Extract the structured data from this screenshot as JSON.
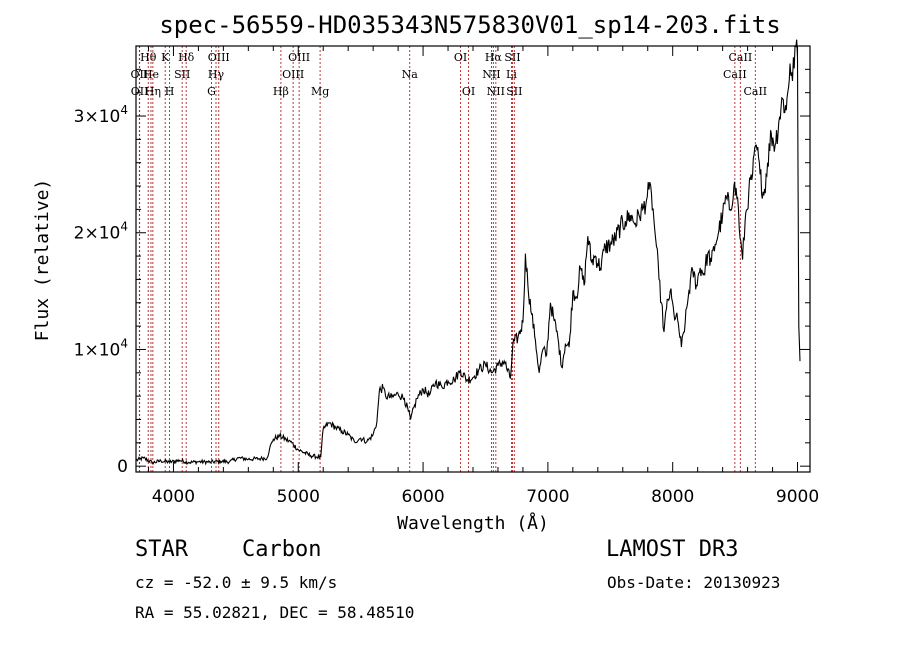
{
  "chart_data": {
    "type": "line",
    "title": "spec-56559-HD035343N575830V01_sp14-203.fits",
    "xlabel": "Wavelength (Å)",
    "ylabel": "Flux (relative)",
    "xlim": [
      3700,
      9100
    ],
    "ylim": [
      -500,
      36000
    ],
    "x_ticks": [
      {
        "value": 4000,
        "label": "4000"
      },
      {
        "value": 5000,
        "label": "5000"
      },
      {
        "value": 6000,
        "label": "6000"
      },
      {
        "value": 7000,
        "label": "7000"
      },
      {
        "value": 8000,
        "label": "8000"
      },
      {
        "value": 9000,
        "label": "9000"
      }
    ],
    "y_ticks": [
      {
        "value": 0,
        "label": "0",
        "mantissa": "",
        "exponent": ""
      },
      {
        "value": 10000,
        "label": "1×10⁴",
        "mantissa": "1×10",
        "exponent": "4"
      },
      {
        "value": 20000,
        "label": "2×10⁴",
        "mantissa": "2×10",
        "exponent": "4"
      },
      {
        "value": 30000,
        "label": "3×10⁴",
        "mantissa": "3×10",
        "exponent": "4"
      }
    ],
    "lines": [
      {
        "name": "OII",
        "wavelength": 3727,
        "row": 2
      },
      {
        "name": "Hθ",
        "wavelength": 3798,
        "row": 1
      },
      {
        "name": "OII",
        "wavelength": 3729,
        "row": 3
      },
      {
        "name": "He",
        "wavelength": 3820,
        "row": 2
      },
      {
        "name": "Hη",
        "wavelength": 3835,
        "row": 3
      },
      {
        "name": "K",
        "wavelength": 3934,
        "row": 1
      },
      {
        "name": "H",
        "wavelength": 3969,
        "row": 3
      },
      {
        "name": "SII",
        "wavelength": 4070,
        "row": 2
      },
      {
        "name": "Hδ",
        "wavelength": 4102,
        "row": 1
      },
      {
        "name": "OIII",
        "wavelength": 4363,
        "row": 1
      },
      {
        "name": "Hγ",
        "wavelength": 4341,
        "row": 2
      },
      {
        "name": "G",
        "wavelength": 4305,
        "row": 3
      },
      {
        "name": "Hβ",
        "wavelength": 4861,
        "row": 3
      },
      {
        "name": "OIII",
        "wavelength": 4959,
        "row": 2
      },
      {
        "name": "OIII",
        "wavelength": 5007,
        "row": 1
      },
      {
        "name": "Mg",
        "wavelength": 5175,
        "row": 3
      },
      {
        "name": "Na",
        "wavelength": 5893,
        "row": 2
      },
      {
        "name": "OI",
        "wavelength": 6300,
        "row": 1
      },
      {
        "name": "OI",
        "wavelength": 6364,
        "row": 3
      },
      {
        "name": "NII",
        "wavelength": 6548,
        "row": 2
      },
      {
        "name": "Hα",
        "wavelength": 6563,
        "row": 1
      },
      {
        "name": "NII",
        "wavelength": 6583,
        "row": 3
      },
      {
        "name": "Li",
        "wavelength": 6708,
        "row": 2
      },
      {
        "name": "SII",
        "wavelength": 6716,
        "row": 1
      },
      {
        "name": "SII",
        "wavelength": 6731,
        "row": 3
      },
      {
        "name": "CaII",
        "wavelength": 8498,
        "row": 2
      },
      {
        "name": "CaII",
        "wavelength": 8542,
        "row": 1
      },
      {
        "name": "CaII",
        "wavelength": 8662,
        "row": 3
      }
    ],
    "series": [
      {
        "name": "flux",
        "points": [
          [
            3700,
            500
          ],
          [
            3760,
            700
          ],
          [
            3830,
            300
          ],
          [
            3900,
            450
          ],
          [
            3970,
            350
          ],
          [
            4050,
            500
          ],
          [
            4120,
            320
          ],
          [
            4200,
            380
          ],
          [
            4300,
            350
          ],
          [
            4380,
            420
          ],
          [
            4450,
            380
          ],
          [
            4520,
            700
          ],
          [
            4600,
            600
          ],
          [
            4700,
            650
          ],
          [
            4750,
            700
          ],
          [
            4770,
            1500
          ],
          [
            4800,
            2300
          ],
          [
            4850,
            2600
          ],
          [
            4900,
            2300
          ],
          [
            4950,
            2000
          ],
          [
            5000,
            1400
          ],
          [
            5100,
            900
          ],
          [
            5180,
            750
          ],
          [
            5200,
            3200
          ],
          [
            5250,
            3700
          ],
          [
            5300,
            3300
          ],
          [
            5350,
            3000
          ],
          [
            5400,
            2700
          ],
          [
            5450,
            2100
          ],
          [
            5500,
            2400
          ],
          [
            5550,
            2100
          ],
          [
            5600,
            2700
          ],
          [
            5630,
            3800
          ],
          [
            5650,
            6500
          ],
          [
            5680,
            6700
          ],
          [
            5700,
            6000
          ],
          [
            5750,
            5900
          ],
          [
            5800,
            6200
          ],
          [
            5850,
            5800
          ],
          [
            5900,
            4000
          ],
          [
            5950,
            5800
          ],
          [
            6000,
            6600
          ],
          [
            6050,
            6100
          ],
          [
            6100,
            7200
          ],
          [
            6150,
            6800
          ],
          [
            6200,
            7300
          ],
          [
            6250,
            7400
          ],
          [
            6300,
            8200
          ],
          [
            6350,
            7400
          ],
          [
            6400,
            7600
          ],
          [
            6450,
            8300
          ],
          [
            6500,
            8700
          ],
          [
            6550,
            8000
          ],
          [
            6600,
            8600
          ],
          [
            6650,
            9000
          ],
          [
            6700,
            7500
          ],
          [
            6720,
            10500
          ],
          [
            6760,
            11000
          ],
          [
            6800,
            12300
          ],
          [
            6820,
            18200
          ],
          [
            6840,
            15500
          ],
          [
            6870,
            13000
          ],
          [
            6900,
            10800
          ],
          [
            6930,
            8000
          ],
          [
            6960,
            10000
          ],
          [
            6990,
            9500
          ],
          [
            7020,
            14000
          ],
          [
            7050,
            12500
          ],
          [
            7080,
            11000
          ],
          [
            7110,
            8500
          ],
          [
            7140,
            10500
          ],
          [
            7170,
            10200
          ],
          [
            7200,
            15000
          ],
          [
            7230,
            14500
          ],
          [
            7260,
            17000
          ],
          [
            7290,
            15500
          ],
          [
            7320,
            19700
          ],
          [
            7350,
            17500
          ],
          [
            7380,
            18000
          ],
          [
            7420,
            17000
          ],
          [
            7460,
            18800
          ],
          [
            7500,
            19000
          ],
          [
            7540,
            19500
          ],
          [
            7580,
            20500
          ],
          [
            7620,
            21000
          ],
          [
            7660,
            21500
          ],
          [
            7700,
            20800
          ],
          [
            7730,
            21500
          ],
          [
            7760,
            22000
          ],
          [
            7790,
            22800
          ],
          [
            7810,
            23700
          ],
          [
            7830,
            23300
          ],
          [
            7850,
            21000
          ],
          [
            7870,
            18800
          ],
          [
            7890,
            16000
          ],
          [
            7910,
            14000
          ],
          [
            7930,
            11500
          ],
          [
            7950,
            13500
          ],
          [
            7980,
            15000
          ],
          [
            8010,
            13000
          ],
          [
            8040,
            12500
          ],
          [
            8070,
            10200
          ],
          [
            8100,
            12300
          ],
          [
            8130,
            15000
          ],
          [
            8160,
            16800
          ],
          [
            8190,
            15500
          ],
          [
            8220,
            17000
          ],
          [
            8250,
            16500
          ],
          [
            8280,
            18200
          ],
          [
            8310,
            17500
          ],
          [
            8340,
            19000
          ],
          [
            8370,
            20200
          ],
          [
            8400,
            21500
          ],
          [
            8430,
            23000
          ],
          [
            8460,
            22000
          ],
          [
            8490,
            24000
          ],
          [
            8520,
            23000
          ],
          [
            8540,
            19500
          ],
          [
            8560,
            17700
          ],
          [
            8580,
            21000
          ],
          [
            8610,
            23500
          ],
          [
            8640,
            25000
          ],
          [
            8670,
            27500
          ],
          [
            8700,
            25000
          ],
          [
            8730,
            23200
          ],
          [
            8760,
            26000
          ],
          [
            8790,
            28500
          ],
          [
            8820,
            27500
          ],
          [
            8850,
            29500
          ],
          [
            8880,
            31500
          ],
          [
            8910,
            30500
          ],
          [
            8940,
            34500
          ],
          [
            8960,
            33000
          ],
          [
            8980,
            36000
          ],
          [
            9000,
            35000
          ],
          [
            9010,
            12000
          ],
          [
            9020,
            9000
          ]
        ]
      }
    ]
  },
  "info": {
    "object_class": "STAR",
    "subclass": "Carbon",
    "survey": "LAMOST DR3",
    "redshift": "cz = -52.0 ± 9.5 km/s",
    "obs_date": "Obs-Date: 20130923",
    "coordinates": "RA =  55.02821, DEC =  58.48510"
  }
}
